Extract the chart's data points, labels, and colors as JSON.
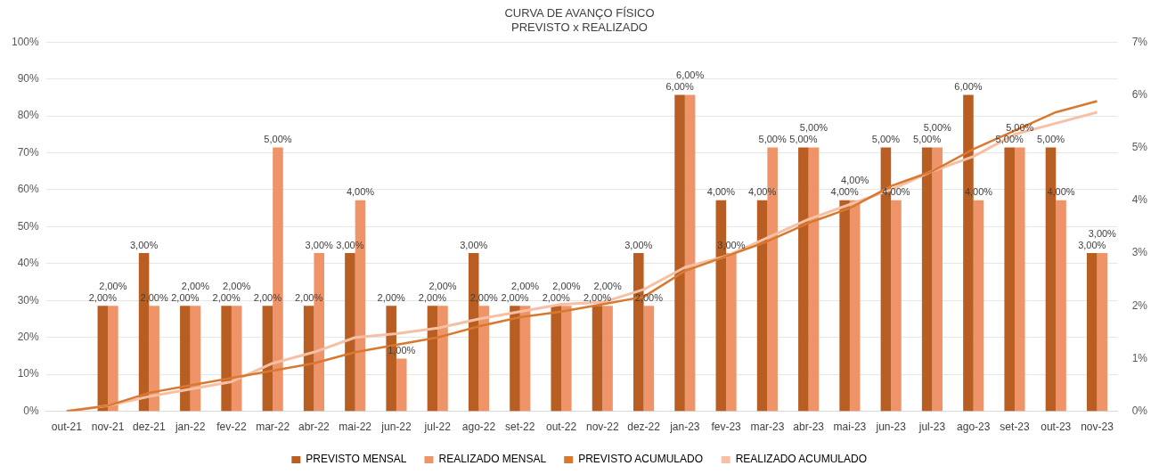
{
  "chart_data": {
    "type": "bar",
    "title": "CURVA DE AVANÇO FÍSICO",
    "subtitle": "PREVISTO x REALIZADO",
    "categories": [
      "out-21",
      "nov-21",
      "dez-21",
      "jan-22",
      "fev-22",
      "mar-22",
      "abr-22",
      "mai-22",
      "jun-22",
      "jul-22",
      "ago-22",
      "set-22",
      "out-22",
      "nov-22",
      "dez-22",
      "jan-23",
      "fev-23",
      "mar-23",
      "abr-23",
      "mai-23",
      "jun-23",
      "jul-23",
      "ago-23",
      "set-23",
      "out-23",
      "nov-23"
    ],
    "series": [
      {
        "name": "PREVISTO MENSAL",
        "type": "bar",
        "axis": "y2",
        "color": "#b95e22",
        "values": [
          null,
          2,
          3,
          2,
          2,
          2,
          2,
          3,
          2,
          2,
          3,
          2,
          2,
          2,
          3,
          6,
          4,
          4,
          5,
          4,
          5,
          5,
          6,
          5,
          5,
          3
        ],
        "value_labels": [
          null,
          "2,00%",
          "3,00%",
          "2,00%",
          "2,00%",
          "2,00%",
          "2,00%",
          "3,00%",
          "2,00%",
          "2,00%",
          "3,00%",
          "2,00%",
          "2,00%",
          "2,00%",
          "3,00%",
          "6,00%",
          "4,00%",
          "4,00%",
          "5,00%",
          "4,00%",
          "5,00%",
          "5,00%",
          "6,00%",
          "5,00%",
          "5,00%",
          "3,00%"
        ]
      },
      {
        "name": "REALIZADO MENSAL",
        "type": "bar",
        "axis": "y2",
        "color": "#ef9468",
        "values": [
          null,
          2,
          2,
          2,
          2,
          5,
          3,
          4,
          1,
          2,
          2,
          2,
          2,
          2,
          2,
          6,
          3,
          5,
          5,
          4,
          4,
          5,
          4,
          5,
          4,
          3
        ],
        "value_labels": [
          null,
          "2,00%",
          "2,00%",
          "2,00%",
          "2,00%",
          "5,00%",
          "3,00%",
          "4,00%",
          "1,00%",
          "2,00%",
          "2,00%",
          "2,00%",
          "2,00%",
          "2,00%",
          "2,00%",
          "6,00%",
          "3,00%",
          "5,00%",
          "5,00%",
          "4,00%",
          "4,00%",
          "5,00%",
          "4,00%",
          "5,00%",
          "4,00%",
          "3,00%"
        ]
      },
      {
        "name": "PREVISTO ACUMULADO",
        "type": "line",
        "axis": "y",
        "color": "#d9782f",
        "values": [
          0,
          1.5,
          5,
          7,
          9,
          11,
          13,
          16,
          18,
          20,
          23,
          25.5,
          27,
          29,
          31,
          38,
          42,
          46,
          51,
          55,
          61,
          65,
          71,
          76,
          81,
          84
        ]
      },
      {
        "name": "REALIZADO ACUMULADO",
        "type": "line",
        "axis": "y",
        "color": "#f5c0a5",
        "values": [
          0,
          1.5,
          4,
          6,
          8,
          13,
          16,
          20,
          21,
          22.5,
          25,
          27,
          29,
          29.5,
          33,
          39,
          42,
          47,
          52,
          56,
          60,
          65,
          69,
          75,
          78,
          81
        ]
      }
    ],
    "ylim": [
      0,
      100
    ],
    "yticks": [
      {
        "value": 0,
        "label": "0%"
      },
      {
        "value": 10,
        "label": "10%"
      },
      {
        "value": 20,
        "label": "20%"
      },
      {
        "value": 30,
        "label": "30%"
      },
      {
        "value": 40,
        "label": "40%"
      },
      {
        "value": 50,
        "label": "50%"
      },
      {
        "value": 60,
        "label": "60%"
      },
      {
        "value": 70,
        "label": "70%"
      },
      {
        "value": 80,
        "label": "80%"
      },
      {
        "value": 90,
        "label": "90%"
      },
      {
        "value": 100,
        "label": "100%"
      }
    ],
    "y2lim": [
      0,
      7
    ],
    "y2ticks": [
      {
        "value": 0,
        "label": "0%"
      },
      {
        "value": 1,
        "label": "1%"
      },
      {
        "value": 2,
        "label": "2%"
      },
      {
        "value": 3,
        "label": "3%"
      },
      {
        "value": 4,
        "label": "4%"
      },
      {
        "value": 5,
        "label": "5%"
      },
      {
        "value": 6,
        "label": "6%"
      },
      {
        "value": 7,
        "label": "7%"
      }
    ],
    "grid": "y",
    "legend": "bottom",
    "marker": "none",
    "line_style": "solid"
  }
}
